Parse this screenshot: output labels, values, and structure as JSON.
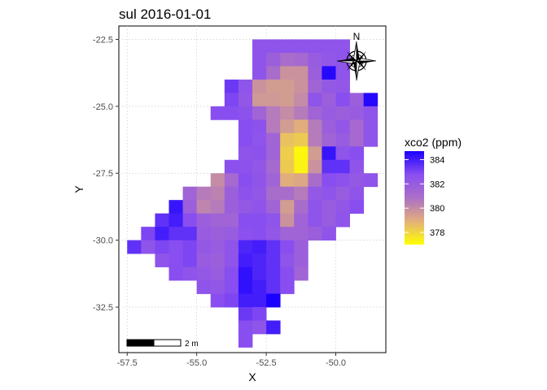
{
  "chart_data": {
    "type": "heatmap",
    "title": "sul 2016-01-01",
    "xlabel": "X",
    "ylabel": "Y",
    "xlim": [
      -57.8,
      -48.2
    ],
    "ylim": [
      -34.2,
      -22.0
    ],
    "xticks": [
      -57.5,
      -55.0,
      -52.5,
      -50.0
    ],
    "xtick_labels": [
      "-57.5",
      "-55.0",
      "-52.5",
      "-50.0"
    ],
    "yticks": [
      -22.5,
      -25.0,
      -27.5,
      -30.0,
      -32.5
    ],
    "ytick_labels": [
      "-22.5",
      "-25.0",
      "-27.5",
      "-30.0",
      "-32.5"
    ],
    "grid": true,
    "cell_size": 0.5,
    "legend": {
      "title": "xco2 (ppm)",
      "position": "right",
      "min": 377,
      "max": 384.7,
      "ticks": [
        378,
        380,
        382,
        384
      ],
      "colors": [
        "#ffff00",
        "#e3b07a",
        "#ab6fc8",
        "#8a4ff0",
        "#1a00ff"
      ]
    },
    "scale_bar_label": "2 m",
    "north_arrow_label": "N",
    "cells": [
      {
        "x": -52.75,
        "y": -22.75,
        "v": 382.5
      },
      {
        "x": -52.25,
        "y": -22.75,
        "v": 382.5
      },
      {
        "x": -51.75,
        "y": -22.75,
        "v": 382.5
      },
      {
        "x": -51.25,
        "y": -22.75,
        "v": 382.5
      },
      {
        "x": -50.75,
        "y": -22.75,
        "v": 382.5
      },
      {
        "x": -50.25,
        "y": -22.75,
        "v": 382.5
      },
      {
        "x": -49.75,
        "y": -22.75,
        "v": 382.5
      },
      {
        "x": -52.75,
        "y": -23.25,
        "v": 382.5
      },
      {
        "x": -52.25,
        "y": -23.25,
        "v": 381.8
      },
      {
        "x": -51.75,
        "y": -23.25,
        "v": 381
      },
      {
        "x": -51.25,
        "y": -23.25,
        "v": 381.2
      },
      {
        "x": -50.75,
        "y": -23.25,
        "v": 382
      },
      {
        "x": -50.25,
        "y": -23.25,
        "v": 382.3
      },
      {
        "x": -49.75,
        "y": -23.25,
        "v": 382.5
      },
      {
        "x": -52.75,
        "y": -23.75,
        "v": 382.5
      },
      {
        "x": -52.25,
        "y": -23.75,
        "v": 381
      },
      {
        "x": -51.75,
        "y": -23.75,
        "v": 379.8
      },
      {
        "x": -51.25,
        "y": -23.75,
        "v": 379.8
      },
      {
        "x": -50.75,
        "y": -23.75,
        "v": 381.8
      },
      {
        "x": -50.25,
        "y": -23.75,
        "v": 384.5
      },
      {
        "x": -49.75,
        "y": -23.75,
        "v": 382.5
      },
      {
        "x": -53.75,
        "y": -24.25,
        "v": 383.3
      },
      {
        "x": -53.25,
        "y": -24.25,
        "v": 382.5
      },
      {
        "x": -52.75,
        "y": -24.25,
        "v": 379.8
      },
      {
        "x": -52.25,
        "y": -24.25,
        "v": 379.5
      },
      {
        "x": -51.75,
        "y": -24.25,
        "v": 379.5
      },
      {
        "x": -51.25,
        "y": -24.25,
        "v": 379.8
      },
      {
        "x": -50.75,
        "y": -24.25,
        "v": 381.5
      },
      {
        "x": -50.25,
        "y": -24.25,
        "v": 382.2
      },
      {
        "x": -49.75,
        "y": -24.25,
        "v": 382.3
      },
      {
        "x": -53.75,
        "y": -24.75,
        "v": 383
      },
      {
        "x": -53.25,
        "y": -24.75,
        "v": 382.3
      },
      {
        "x": -52.75,
        "y": -24.75,
        "v": 379.6
      },
      {
        "x": -52.25,
        "y": -24.75,
        "v": 379.6
      },
      {
        "x": -51.75,
        "y": -24.75,
        "v": 379.5
      },
      {
        "x": -51.25,
        "y": -24.75,
        "v": 380
      },
      {
        "x": -50.75,
        "y": -24.75,
        "v": 382.5
      },
      {
        "x": -50.25,
        "y": -24.75,
        "v": 381.8
      },
      {
        "x": -49.75,
        "y": -24.75,
        "v": 382.8
      },
      {
        "x": -49.25,
        "y": -24.75,
        "v": 381.8
      },
      {
        "x": -48.75,
        "y": -24.75,
        "v": 384.5
      },
      {
        "x": -54.25,
        "y": -25.25,
        "v": 382.8
      },
      {
        "x": -53.75,
        "y": -25.25,
        "v": 382.8
      },
      {
        "x": -53.25,
        "y": -25.25,
        "v": 382.6
      },
      {
        "x": -52.75,
        "y": -25.25,
        "v": 381.5
      },
      {
        "x": -52.25,
        "y": -25.25,
        "v": 380.5
      },
      {
        "x": -51.75,
        "y": -25.25,
        "v": 380
      },
      {
        "x": -51.25,
        "y": -25.25,
        "v": 380.5
      },
      {
        "x": -50.75,
        "y": -25.25,
        "v": 381.5
      },
      {
        "x": -50.25,
        "y": -25.25,
        "v": 382
      },
      {
        "x": -49.75,
        "y": -25.25,
        "v": 381.8
      },
      {
        "x": -49.25,
        "y": -25.25,
        "v": 382
      },
      {
        "x": -48.75,
        "y": -25.25,
        "v": 382.5
      },
      {
        "x": -53.25,
        "y": -25.75,
        "v": 382.8
      },
      {
        "x": -52.75,
        "y": -25.75,
        "v": 382.6
      },
      {
        "x": -52.25,
        "y": -25.75,
        "v": 380.5
      },
      {
        "x": -51.75,
        "y": -25.75,
        "v": 379.5
      },
      {
        "x": -51.25,
        "y": -25.75,
        "v": 379
      },
      {
        "x": -50.75,
        "y": -25.75,
        "v": 380.5
      },
      {
        "x": -50.25,
        "y": -25.75,
        "v": 381.8
      },
      {
        "x": -49.75,
        "y": -25.75,
        "v": 382.3
      },
      {
        "x": -49.25,
        "y": -25.75,
        "v": 381.2
      },
      {
        "x": -48.75,
        "y": -25.75,
        "v": 382.5
      },
      {
        "x": -53.25,
        "y": -26.25,
        "v": 382.8
      },
      {
        "x": -52.75,
        "y": -26.25,
        "v": 382.5
      },
      {
        "x": -52.25,
        "y": -26.25,
        "v": 381.5
      },
      {
        "x": -51.75,
        "y": -26.25,
        "v": 378.5
      },
      {
        "x": -51.25,
        "y": -26.25,
        "v": 378.3
      },
      {
        "x": -50.75,
        "y": -26.25,
        "v": 380.5
      },
      {
        "x": -50.25,
        "y": -26.25,
        "v": 381.5
      },
      {
        "x": -49.75,
        "y": -26.25,
        "v": 382
      },
      {
        "x": -49.25,
        "y": -26.25,
        "v": 381.2
      },
      {
        "x": -48.75,
        "y": -26.25,
        "v": 382.5
      },
      {
        "x": -53.25,
        "y": -26.75,
        "v": 382.5
      },
      {
        "x": -52.75,
        "y": -26.75,
        "v": 382.6
      },
      {
        "x": -52.25,
        "y": -26.75,
        "v": 381.5
      },
      {
        "x": -51.75,
        "y": -26.75,
        "v": 378.2
      },
      {
        "x": -51.25,
        "y": -26.75,
        "v": 377.2
      },
      {
        "x": -50.75,
        "y": -26.75,
        "v": 379.5
      },
      {
        "x": -50.25,
        "y": -26.75,
        "v": 384.2
      },
      {
        "x": -49.75,
        "y": -26.75,
        "v": 382.5
      },
      {
        "x": -49.25,
        "y": -26.75,
        "v": 382.8
      },
      {
        "x": -53.75,
        "y": -27.25,
        "v": 382.7
      },
      {
        "x": -53.25,
        "y": -27.25,
        "v": 382.6
      },
      {
        "x": -52.75,
        "y": -27.25,
        "v": 382.3
      },
      {
        "x": -52.25,
        "y": -27.25,
        "v": 381.2
      },
      {
        "x": -51.75,
        "y": -27.25,
        "v": 378.3
      },
      {
        "x": -51.25,
        "y": -27.25,
        "v": 377.3
      },
      {
        "x": -50.75,
        "y": -27.25,
        "v": 379.8
      },
      {
        "x": -50.25,
        "y": -27.25,
        "v": 383.5
      },
      {
        "x": -49.75,
        "y": -27.25,
        "v": 383.5
      },
      {
        "x": -49.25,
        "y": -27.25,
        "v": 382.5
      },
      {
        "x": -54.25,
        "y": -27.75,
        "v": 380
      },
      {
        "x": -53.75,
        "y": -27.75,
        "v": 381.2
      },
      {
        "x": -53.25,
        "y": -27.75,
        "v": 382.8
      },
      {
        "x": -52.75,
        "y": -27.75,
        "v": 382.4
      },
      {
        "x": -52.25,
        "y": -27.75,
        "v": 381.5
      },
      {
        "x": -51.75,
        "y": -27.75,
        "v": 379
      },
      {
        "x": -51.25,
        "y": -27.75,
        "v": 379.2
      },
      {
        "x": -50.75,
        "y": -27.75,
        "v": 381
      },
      {
        "x": -50.25,
        "y": -27.75,
        "v": 382.8
      },
      {
        "x": -49.75,
        "y": -27.75,
        "v": 382.6
      },
      {
        "x": -49.25,
        "y": -27.75,
        "v": 382.2
      },
      {
        "x": -48.75,
        "y": -27.75,
        "v": 382.5
      },
      {
        "x": -55.25,
        "y": -28.25,
        "v": 381.5
      },
      {
        "x": -54.75,
        "y": -28.25,
        "v": 380.5
      },
      {
        "x": -54.25,
        "y": -28.25,
        "v": 380.3
      },
      {
        "x": -53.75,
        "y": -28.25,
        "v": 381.8
      },
      {
        "x": -53.25,
        "y": -28.25,
        "v": 382.6
      },
      {
        "x": -52.75,
        "y": -28.25,
        "v": 382.3
      },
      {
        "x": -52.25,
        "y": -28.25,
        "v": 381
      },
      {
        "x": -51.75,
        "y": -28.25,
        "v": 381
      },
      {
        "x": -51.25,
        "y": -28.25,
        "v": 380.5
      },
      {
        "x": -50.75,
        "y": -28.25,
        "v": 382.2
      },
      {
        "x": -50.25,
        "y": -28.25,
        "v": 382.5
      },
      {
        "x": -49.75,
        "y": -28.25,
        "v": 382
      },
      {
        "x": -49.25,
        "y": -28.25,
        "v": 382.5
      },
      {
        "x": -55.75,
        "y": -28.75,
        "v": 384.2
      },
      {
        "x": -55.25,
        "y": -28.75,
        "v": 381.8
      },
      {
        "x": -54.75,
        "y": -28.75,
        "v": 380.2
      },
      {
        "x": -54.25,
        "y": -28.75,
        "v": 380.5
      },
      {
        "x": -53.75,
        "y": -28.75,
        "v": 381.8
      },
      {
        "x": -53.25,
        "y": -28.75,
        "v": 382.2
      },
      {
        "x": -52.75,
        "y": -28.75,
        "v": 382.5
      },
      {
        "x": -52.25,
        "y": -28.75,
        "v": 381.5
      },
      {
        "x": -51.75,
        "y": -28.75,
        "v": 379.5
      },
      {
        "x": -51.25,
        "y": -28.75,
        "v": 381
      },
      {
        "x": -50.75,
        "y": -28.75,
        "v": 382.5
      },
      {
        "x": -50.25,
        "y": -28.75,
        "v": 382
      },
      {
        "x": -49.75,
        "y": -28.75,
        "v": 382.3
      },
      {
        "x": -49.25,
        "y": -28.75,
        "v": 382.8
      },
      {
        "x": -56.25,
        "y": -29.25,
        "v": 383.5
      },
      {
        "x": -55.75,
        "y": -29.25,
        "v": 384
      },
      {
        "x": -55.25,
        "y": -29.25,
        "v": 382.8
      },
      {
        "x": -54.75,
        "y": -29.25,
        "v": 381.8
      },
      {
        "x": -54.25,
        "y": -29.25,
        "v": 381.5
      },
      {
        "x": -53.75,
        "y": -29.25,
        "v": 381.5
      },
      {
        "x": -53.25,
        "y": -29.25,
        "v": 382.8
      },
      {
        "x": -52.75,
        "y": -29.25,
        "v": 382.8
      },
      {
        "x": -52.25,
        "y": -29.25,
        "v": 382.5
      },
      {
        "x": -51.75,
        "y": -29.25,
        "v": 379.8
      },
      {
        "x": -51.25,
        "y": -29.25,
        "v": 381.5
      },
      {
        "x": -50.75,
        "y": -29.25,
        "v": 382.5
      },
      {
        "x": -50.25,
        "y": -29.25,
        "v": 382
      },
      {
        "x": -49.75,
        "y": -29.25,
        "v": 382.5
      },
      {
        "x": -56.75,
        "y": -29.75,
        "v": 383
      },
      {
        "x": -56.25,
        "y": -29.75,
        "v": 384
      },
      {
        "x": -55.75,
        "y": -29.75,
        "v": 383.5
      },
      {
        "x": -55.25,
        "y": -29.75,
        "v": 383.5
      },
      {
        "x": -54.75,
        "y": -29.75,
        "v": 382
      },
      {
        "x": -54.25,
        "y": -29.75,
        "v": 381.8
      },
      {
        "x": -53.75,
        "y": -29.75,
        "v": 382
      },
      {
        "x": -53.25,
        "y": -29.75,
        "v": 382.7
      },
      {
        "x": -52.75,
        "y": -29.75,
        "v": 382.8
      },
      {
        "x": -52.25,
        "y": -29.75,
        "v": 382.3
      },
      {
        "x": -51.75,
        "y": -29.75,
        "v": 381.5
      },
      {
        "x": -51.25,
        "y": -29.75,
        "v": 381.5
      },
      {
        "x": -50.75,
        "y": -29.75,
        "v": 381.8
      },
      {
        "x": -50.25,
        "y": -29.75,
        "v": 382.5
      },
      {
        "x": -57.25,
        "y": -30.25,
        "v": 383.5
      },
      {
        "x": -56.75,
        "y": -30.25,
        "v": 382.5
      },
      {
        "x": -56.25,
        "y": -30.25,
        "v": 383
      },
      {
        "x": -55.75,
        "y": -30.25,
        "v": 382.8
      },
      {
        "x": -55.25,
        "y": -30.25,
        "v": 383
      },
      {
        "x": -54.75,
        "y": -30.25,
        "v": 382.2
      },
      {
        "x": -54.25,
        "y": -30.25,
        "v": 382
      },
      {
        "x": -53.75,
        "y": -30.25,
        "v": 382.5
      },
      {
        "x": -53.25,
        "y": -30.25,
        "v": 383.8
      },
      {
        "x": -52.75,
        "y": -30.25,
        "v": 384
      },
      {
        "x": -52.25,
        "y": -30.25,
        "v": 383.5
      },
      {
        "x": -51.75,
        "y": -30.25,
        "v": 382.8
      },
      {
        "x": -51.25,
        "y": -30.25,
        "v": 381.8
      },
      {
        "x": -56.25,
        "y": -30.75,
        "v": 382.5
      },
      {
        "x": -55.75,
        "y": -30.75,
        "v": 382.8
      },
      {
        "x": -55.25,
        "y": -30.75,
        "v": 383
      },
      {
        "x": -54.75,
        "y": -30.75,
        "v": 382
      },
      {
        "x": -54.25,
        "y": -30.75,
        "v": 381.8
      },
      {
        "x": -53.75,
        "y": -30.75,
        "v": 382.5
      },
      {
        "x": -53.25,
        "y": -30.75,
        "v": 384
      },
      {
        "x": -52.75,
        "y": -30.75,
        "v": 383.8
      },
      {
        "x": -52.25,
        "y": -30.75,
        "v": 383.5
      },
      {
        "x": -51.75,
        "y": -30.75,
        "v": 382.5
      },
      {
        "x": -51.25,
        "y": -30.75,
        "v": 381.8
      },
      {
        "x": -55.75,
        "y": -31.25,
        "v": 382.8
      },
      {
        "x": -55.25,
        "y": -31.25,
        "v": 382.5
      },
      {
        "x": -54.75,
        "y": -31.25,
        "v": 382.2
      },
      {
        "x": -54.25,
        "y": -31.25,
        "v": 382
      },
      {
        "x": -53.75,
        "y": -31.25,
        "v": 382.8
      },
      {
        "x": -53.25,
        "y": -31.25,
        "v": 384.3
      },
      {
        "x": -52.75,
        "y": -31.25,
        "v": 383.8
      },
      {
        "x": -52.25,
        "y": -31.25,
        "v": 383.5
      },
      {
        "x": -51.75,
        "y": -31.25,
        "v": 382.8
      },
      {
        "x": -51.25,
        "y": -31.25,
        "v": 381.5
      },
      {
        "x": -54.75,
        "y": -31.75,
        "v": 382.5
      },
      {
        "x": -54.25,
        "y": -31.75,
        "v": 382.3
      },
      {
        "x": -53.75,
        "y": -31.75,
        "v": 382.8
      },
      {
        "x": -53.25,
        "y": -31.75,
        "v": 384.3
      },
      {
        "x": -52.75,
        "y": -31.75,
        "v": 384
      },
      {
        "x": -52.25,
        "y": -31.75,
        "v": 383.5
      },
      {
        "x": -51.75,
        "y": -31.75,
        "v": 382.8
      },
      {
        "x": -54.25,
        "y": -32.25,
        "v": 382.8
      },
      {
        "x": -53.75,
        "y": -32.25,
        "v": 383
      },
      {
        "x": -53.25,
        "y": -32.25,
        "v": 384
      },
      {
        "x": -52.75,
        "y": -32.25,
        "v": 384
      },
      {
        "x": -52.25,
        "y": -32.25,
        "v": 384.7
      },
      {
        "x": -53.25,
        "y": -32.75,
        "v": 383.3
      },
      {
        "x": -52.75,
        "y": -32.75,
        "v": 383
      },
      {
        "x": -53.25,
        "y": -33.25,
        "v": 382.8
      },
      {
        "x": -52.75,
        "y": -33.25,
        "v": 382.5
      },
      {
        "x": -52.25,
        "y": -33.25,
        "v": 384
      },
      {
        "x": -53.25,
        "y": -33.75,
        "v": 382.8
      }
    ]
  }
}
